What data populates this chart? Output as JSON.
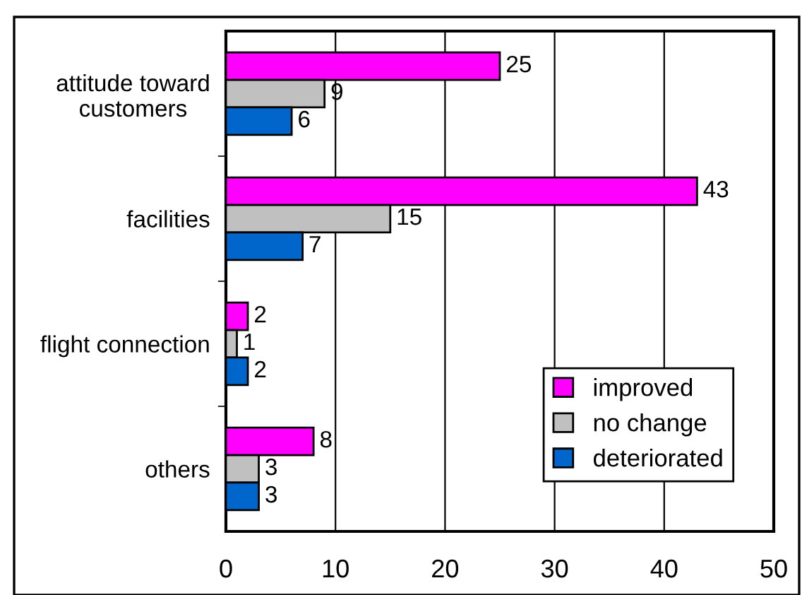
{
  "chart_data": {
    "type": "bar",
    "orientation": "horizontal",
    "categories": [
      "attitude toward\ncustomers",
      "facilities",
      "flight connection",
      "others"
    ],
    "series": [
      {
        "name": "improved",
        "color": "#ff00ff",
        "values": [
          25,
          43,
          2,
          8
        ]
      },
      {
        "name": "no change",
        "color": "#c0c0c0",
        "values": [
          9,
          15,
          1,
          3
        ]
      },
      {
        "name": "deteriorated",
        "color": "#0066cc",
        "values": [
          6,
          7,
          2,
          3
        ]
      }
    ],
    "xlim": [
      0,
      50
    ],
    "xticks": [
      0,
      10,
      20,
      30,
      40,
      50
    ],
    "grid": "x",
    "legend": "bottom right",
    "data_labels": true
  }
}
